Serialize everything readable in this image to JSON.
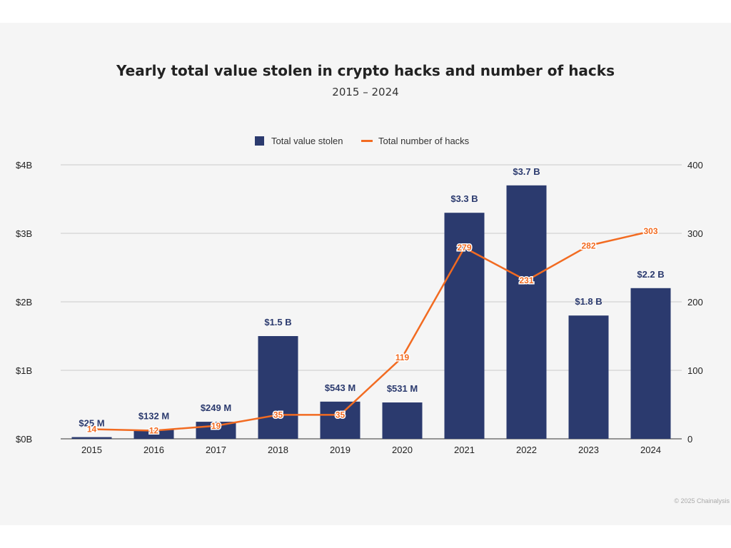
{
  "chart_data": {
    "type": "bar",
    "title": "Yearly total value stolen in crypto hacks and number of hacks",
    "subtitle": "2015 – 2024",
    "categories": [
      "2015",
      "2016",
      "2017",
      "2018",
      "2019",
      "2020",
      "2021",
      "2022",
      "2023",
      "2024"
    ],
    "series": [
      {
        "name": "Total value stolen",
        "type": "bar",
        "axis": "left",
        "color": "#2b3a6e",
        "values": [
          0.025,
          0.132,
          0.249,
          1.5,
          0.543,
          0.531,
          3.3,
          3.7,
          1.8,
          2.2
        ],
        "labels": [
          "$25  M",
          "$132  M",
          "$249  M",
          "$1.5 B",
          "$543  M",
          "$531  M",
          "$3.3 B",
          "$3.7 B",
          "$1.8 B",
          "$2.2 B"
        ]
      },
      {
        "name": "Total number of hacks",
        "type": "line",
        "axis": "right",
        "color": "#f26b21",
        "values": [
          14,
          12,
          19,
          35,
          35,
          119,
          279,
          231,
          282,
          303
        ],
        "labels": [
          "14",
          "12",
          "19",
          "35",
          "35",
          "119",
          "279",
          "231",
          "282",
          "303"
        ]
      }
    ],
    "y_left": {
      "ticks": [
        "$0B",
        "$1B",
        "$2B",
        "$3B",
        "$4B"
      ],
      "ylim": [
        0,
        4
      ]
    },
    "y_right": {
      "ticks": [
        "0",
        "100",
        "200",
        "300",
        "400"
      ],
      "ylim": [
        0,
        400
      ]
    },
    "legend_position": "top-center",
    "grid": true,
    "credit": "© 2025 Chainalysis"
  }
}
